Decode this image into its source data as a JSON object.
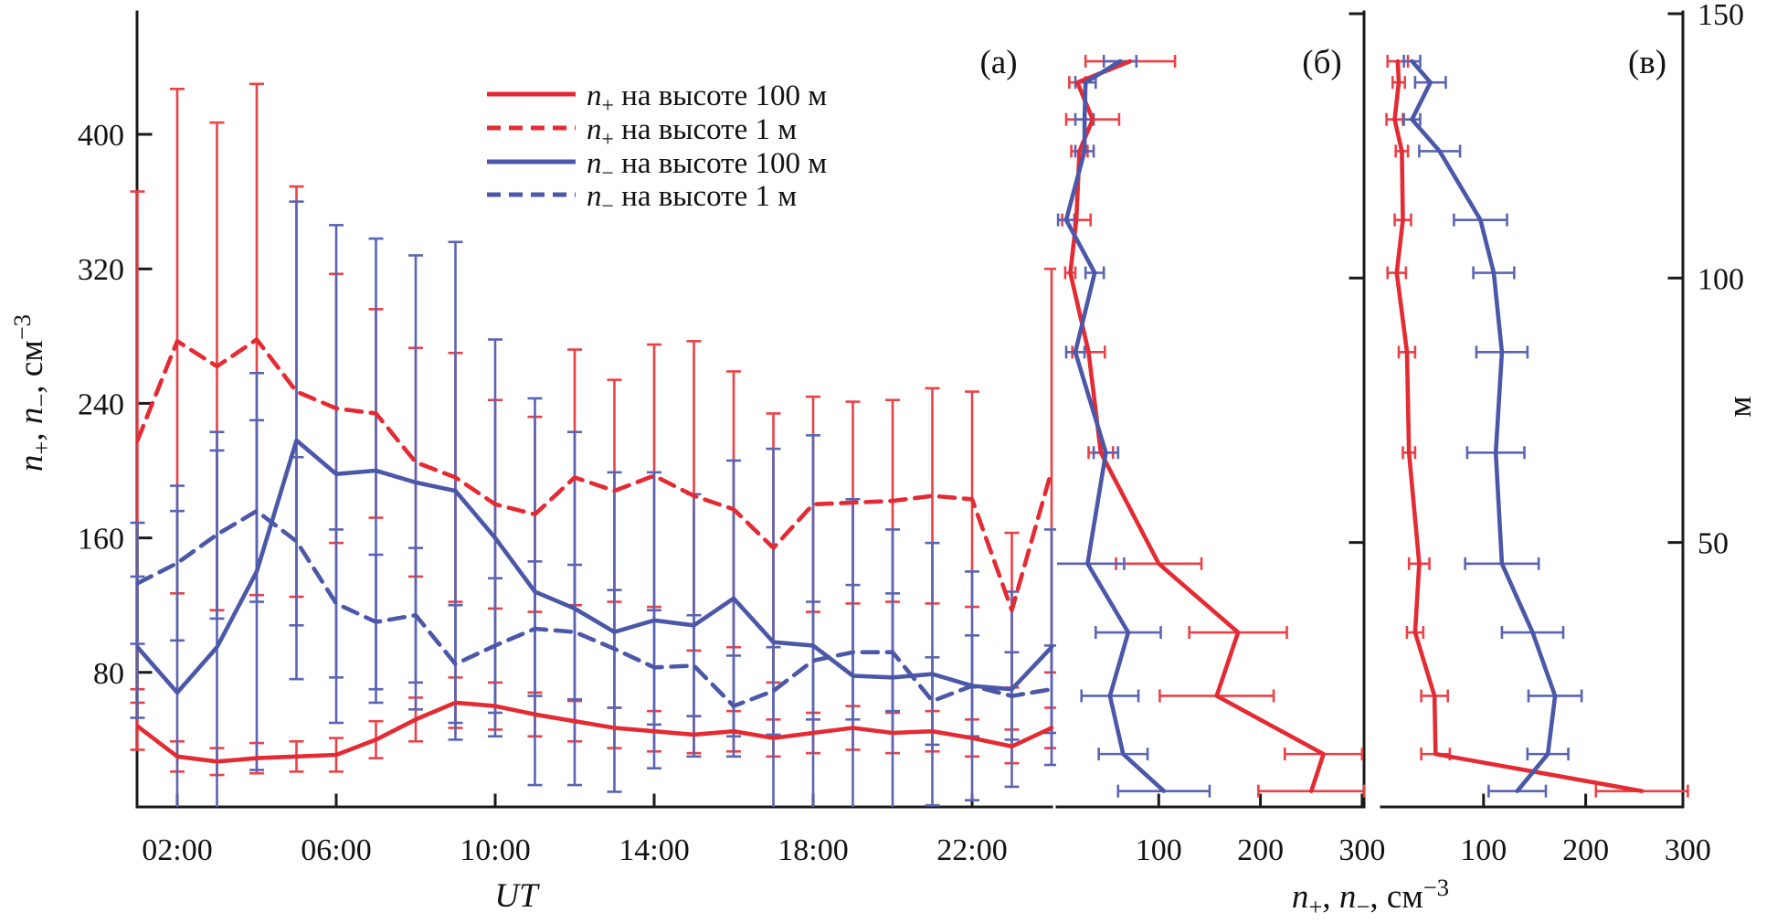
{
  "figure": {
    "panel_letters": [
      "(а)",
      "(б)",
      "(в)"
    ],
    "colors": {
      "red": "#e42b33",
      "blue": "#4b57a8",
      "red_err": "#ea4147",
      "blue_err": "#5a64b2",
      "axis": "#1a1a1a"
    },
    "legend": {
      "items": [
        {
          "label": "n₊ на высоте 100 м",
          "color": "#e42b33",
          "dashed": false
        },
        {
          "label": "n₊ на высоте 1 м",
          "color": "#e42b33",
          "dashed": true
        },
        {
          "label": "n₋ на высоте 100 м",
          "color": "#4b57a8",
          "dashed": false
        },
        {
          "label": "n₋ на высоте 1 м",
          "color": "#4b57a8",
          "dashed": true
        }
      ]
    },
    "axes_titles": {
      "x_a": "UT",
      "y_a": "n₊, n₋, см⁻³",
      "x_bv": "n₊, n₋, см⁻³",
      "y_right": "м"
    }
  },
  "chart_data": [
    {
      "id": "a",
      "type": "line",
      "panel_label": "(а)",
      "xlabel": "UT",
      "ylabel": "n₊, n₋, см⁻³",
      "ylim": [
        0,
        472
      ],
      "xlim_hours": [
        1,
        24
      ],
      "yticks": [
        80,
        160,
        240,
        320,
        400
      ],
      "xticks": [
        {
          "hour": 2,
          "label": "02:00"
        },
        {
          "hour": 6,
          "label": "06:00"
        },
        {
          "hour": 10,
          "label": "10:00"
        },
        {
          "hour": 14,
          "label": "14:00"
        },
        {
          "hour": 18,
          "label": "18:00"
        },
        {
          "hour": 22,
          "label": "22:00"
        }
      ],
      "hours": [
        1,
        2,
        3,
        4,
        5,
        6,
        7,
        8,
        9,
        10,
        11,
        12,
        13,
        14,
        15,
        16,
        17,
        18,
        19,
        20,
        21,
        22,
        23,
        24
      ],
      "series": [
        {
          "name": "n+ на высоте 100 м",
          "color": "#e42b33",
          "err_color": "#ea4147",
          "dashed": false,
          "values": [
            48,
            30,
            27,
            29,
            30,
            31,
            40,
            52,
            62,
            60,
            55,
            51,
            47,
            45,
            43,
            45,
            41,
            44,
            47,
            44,
            45,
            41,
            36,
            47
          ],
          "errors": [
            14,
            9,
            8,
            9,
            9,
            10,
            11,
            13,
            15,
            14,
            13,
            12,
            12,
            12,
            11,
            12,
            11,
            12,
            13,
            12,
            12,
            11,
            10,
            12
          ]
        },
        {
          "name": "n+ на высоте 1 м",
          "color": "#e42b33",
          "err_color": "#ea4147",
          "dashed": true,
          "values": [
            218,
            277,
            262,
            278,
            247,
            237,
            234,
            205,
            196,
            180,
            174,
            196,
            188,
            197,
            185,
            177,
            154,
            180,
            181,
            182,
            185,
            183,
            117,
            200
          ],
          "errors": [
            148,
            150,
            145,
            152,
            122,
            80,
            62,
            68,
            74,
            62,
            58,
            76,
            66,
            78,
            92,
            82,
            80,
            64,
            60,
            60,
            64,
            64,
            46,
            120
          ]
        },
        {
          "name": "n- на высоте 100 м",
          "color": "#4b57a8",
          "err_color": "#5a64b2",
          "dashed": false,
          "values": [
            95,
            68,
            95,
            140,
            218,
            198,
            200,
            193,
            188,
            160,
            128,
            118,
            104,
            111,
            108,
            124,
            98,
            96,
            78,
            77,
            79,
            72,
            70,
            95
          ],
          "errors": [
            42,
            108,
            128,
            118,
            142,
            148,
            138,
            135,
            148,
            118,
            115,
            105,
            95,
            88,
            78,
            82,
            115,
            125,
            105,
            88,
            78,
            68,
            58,
            70
          ]
        },
        {
          "name": "n- на высоте 1 м",
          "color": "#4b57a8",
          "err_color": "#5a64b2",
          "dashed": true,
          "values": [
            133,
            145,
            162,
            176,
            158,
            121,
            110,
            114,
            85,
            96,
            106,
            104,
            94,
            83,
            84,
            60,
            69,
            87,
            92,
            92,
            63,
            72,
            66,
            70
          ],
          "errors": [
            36,
            46,
            50,
            54,
            50,
            44,
            40,
            40,
            35,
            40,
            40,
            40,
            35,
            34,
            30,
            30,
            26,
            35,
            40,
            35,
            26,
            30,
            26,
            26
          ]
        }
      ]
    },
    {
      "id": "b",
      "type": "profile",
      "panel_label": "(б)",
      "xlabel": "n₊, n₋, см⁻³",
      "xlim": [
        0,
        302
      ],
      "xticks": [
        100,
        200,
        300
      ],
      "height_ticks": [
        150,
        100,
        50
      ],
      "heights_m": [
        141,
        137,
        130,
        124,
        111,
        101,
        86,
        67,
        46,
        33,
        21,
        10,
        3
      ],
      "series": [
        {
          "name": "n+",
          "color": "#e42b33",
          "err_color": "#ea4147",
          "values": [
            72,
            20,
            35,
            22,
            19,
            13,
            31,
            43,
            100,
            178,
            157,
            262,
            250
          ],
          "errors": [
            44,
            8,
            26,
            8,
            14,
            5,
            16,
            12,
            42,
            48,
            56,
            38,
            52
          ]
        },
        {
          "name": "n-",
          "color": "#4b57a8",
          "err_color": "#5a64b2",
          "values": [
            62,
            28,
            27,
            27,
            9,
            37,
            18,
            48,
            30,
            70,
            52,
            65,
            105
          ],
          "errors": [
            16,
            10,
            9,
            9,
            8,
            9,
            9,
            12,
            36,
            32,
            28,
            24,
            45
          ]
        }
      ]
    },
    {
      "id": "v",
      "type": "profile",
      "panel_label": "(в)",
      "xlabel": "n₊, n₋, см⁻³",
      "xlim": [
        0,
        296
      ],
      "xticks": [
        100,
        200,
        300
      ],
      "height_ticks": [
        150,
        100,
        50
      ],
      "height_tick_labels": [
        "150",
        "100",
        "50"
      ],
      "ylabel_right": "м",
      "heights_m": [
        141,
        137,
        130,
        124,
        111,
        101,
        86,
        67,
        46,
        33,
        21,
        10,
        3
      ],
      "series": [
        {
          "name": "n+",
          "color": "#e42b33",
          "err_color": "#ea4147",
          "values": [
            16,
            17,
            13,
            20,
            21,
            15,
            25,
            27,
            37,
            33,
            52,
            53,
            255
          ],
          "errors": [
            10,
            6,
            8,
            6,
            8,
            9,
            8,
            6,
            10,
            8,
            13,
            14,
            45
          ]
        },
        {
          "name": "n-",
          "color": "#4b57a8",
          "err_color": "#5a64b2",
          "values": [
            30,
            48,
            30,
            57,
            97,
            110,
            118,
            112,
            118,
            148,
            170,
            163,
            133
          ],
          "errors": [
            8,
            15,
            8,
            20,
            26,
            20,
            25,
            28,
            36,
            30,
            26,
            20,
            28
          ]
        }
      ]
    }
  ]
}
